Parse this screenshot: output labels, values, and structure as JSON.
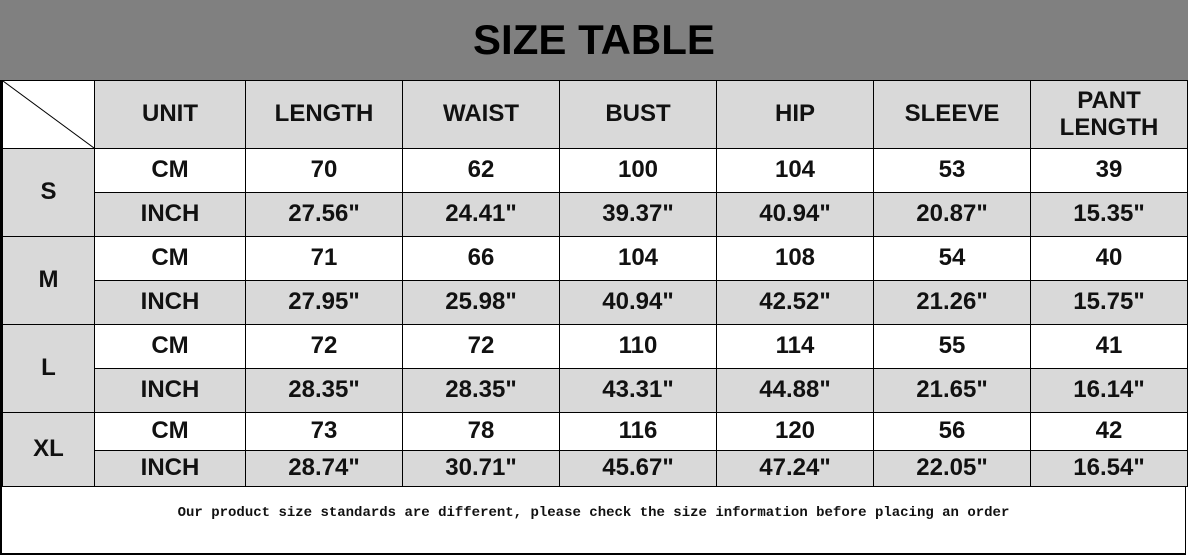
{
  "title": "SIZE TABLE",
  "headers": [
    "UNIT",
    "LENGTH",
    "WAIST",
    "BUST",
    "HIP",
    "SLEEVE",
    "PANT LENGTH"
  ],
  "sizes": [
    {
      "size": "S",
      "rows": [
        {
          "unit": "CM",
          "values": [
            "70",
            "62",
            "100",
            "104",
            "53",
            "39"
          ]
        },
        {
          "unit": "INCH",
          "values": [
            "27.56\"",
            "24.41\"",
            "39.37\"",
            "40.94\"",
            "20.87\"",
            "15.35\""
          ]
        }
      ]
    },
    {
      "size": "M",
      "rows": [
        {
          "unit": "CM",
          "values": [
            "71",
            "66",
            "104",
            "108",
            "54",
            "40"
          ]
        },
        {
          "unit": "INCH",
          "values": [
            "27.95\"",
            "25.98\"",
            "40.94\"",
            "42.52\"",
            "21.26\"",
            "15.75\""
          ]
        }
      ]
    },
    {
      "size": "L",
      "rows": [
        {
          "unit": "CM",
          "values": [
            "72",
            "72",
            "110",
            "114",
            "55",
            "41"
          ]
        },
        {
          "unit": "INCH",
          "values": [
            "28.35\"",
            "28.35\"",
            "43.31\"",
            "44.88\"",
            "21.65\"",
            "16.14\""
          ]
        }
      ]
    },
    {
      "size": "XL",
      "rows": [
        {
          "unit": "CM",
          "values": [
            "73",
            "78",
            "116",
            "120",
            "56",
            "42"
          ]
        },
        {
          "unit": "INCH",
          "values": [
            "28.74\"",
            "30.71\"",
            "45.67\"",
            "47.24\"",
            "22.05\"",
            "16.54\""
          ]
        }
      ]
    }
  ],
  "footer_note": "Our product size standards are different, please check the size information before placing an order",
  "colors": {
    "title_bg": "#808080",
    "header_bg": "#d9d9d9",
    "inch_row_bg": "#d9d9d9"
  }
}
